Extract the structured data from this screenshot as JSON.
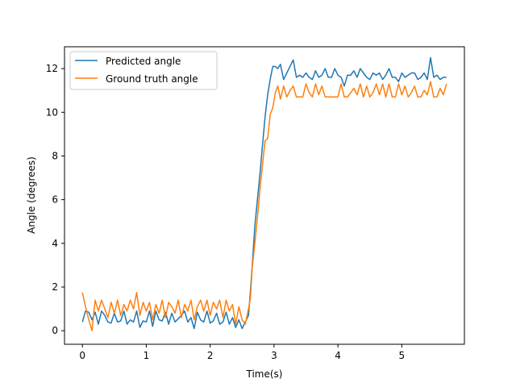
{
  "chart_data": {
    "type": "line",
    "title": "",
    "xlabel": "Time(s)",
    "ylabel": "Angle (degrees)",
    "xlim": [
      -0.28,
      5.98
    ],
    "ylim": [
      -0.62,
      13.0
    ],
    "xticks": [
      0,
      1,
      2,
      3,
      4,
      5
    ],
    "yticks": [
      0,
      2,
      4,
      6,
      8,
      10,
      12
    ],
    "grid": false,
    "legend": "top-left",
    "series": [
      {
        "name": "Predicted angle",
        "color": "#1f77b4",
        "x": [
          0.0,
          0.05,
          0.1,
          0.15,
          0.2,
          0.25,
          0.3,
          0.35,
          0.4,
          0.45,
          0.5,
          0.55,
          0.6,
          0.65,
          0.7,
          0.75,
          0.8,
          0.85,
          0.9,
          0.95,
          1.0,
          1.05,
          1.1,
          1.15,
          1.2,
          1.25,
          1.3,
          1.35,
          1.4,
          1.45,
          1.5,
          1.55,
          1.6,
          1.65,
          1.7,
          1.75,
          1.8,
          1.85,
          1.9,
          1.95,
          2.0,
          2.05,
          2.1,
          2.15,
          2.2,
          2.25,
          2.3,
          2.35,
          2.4,
          2.45,
          2.5,
          2.55,
          2.6,
          2.63,
          2.66,
          2.7,
          2.74,
          2.78,
          2.82,
          2.86,
          2.9,
          2.94,
          2.98,
          3.02,
          3.06,
          3.1,
          3.15,
          3.2,
          3.25,
          3.3,
          3.35,
          3.4,
          3.45,
          3.5,
          3.55,
          3.6,
          3.65,
          3.7,
          3.75,
          3.8,
          3.85,
          3.9,
          3.95,
          4.0,
          4.05,
          4.1,
          4.15,
          4.2,
          4.25,
          4.3,
          4.35,
          4.4,
          4.45,
          4.5,
          4.55,
          4.6,
          4.65,
          4.7,
          4.75,
          4.8,
          4.85,
          4.9,
          4.95,
          5.0,
          5.05,
          5.1,
          5.15,
          5.2,
          5.25,
          5.3,
          5.35,
          5.4,
          5.45,
          5.5,
          5.55,
          5.6,
          5.65,
          5.7
        ],
        "y": [
          0.4,
          0.9,
          0.85,
          0.5,
          0.85,
          0.3,
          0.9,
          0.7,
          0.4,
          0.35,
          0.8,
          0.4,
          0.45,
          0.9,
          0.3,
          0.5,
          0.4,
          0.9,
          0.15,
          0.45,
          0.4,
          0.9,
          0.2,
          0.9,
          0.5,
          0.45,
          0.85,
          0.3,
          0.8,
          0.4,
          0.55,
          0.7,
          0.9,
          0.4,
          0.6,
          0.1,
          0.85,
          0.5,
          0.4,
          0.9,
          0.35,
          0.45,
          0.8,
          0.3,
          0.4,
          0.85,
          0.3,
          0.6,
          0.15,
          0.5,
          0.1,
          0.4,
          0.7,
          1.8,
          3.0,
          4.8,
          6.0,
          7.2,
          8.5,
          9.8,
          10.8,
          11.5,
          12.1,
          12.1,
          12.0,
          12.2,
          11.5,
          11.8,
          12.1,
          12.4,
          11.6,
          11.7,
          11.6,
          11.8,
          11.6,
          11.5,
          11.9,
          11.6,
          11.7,
          12.0,
          11.6,
          11.6,
          12.0,
          11.7,
          11.6,
          11.2,
          11.7,
          11.7,
          11.9,
          11.6,
          12.0,
          11.8,
          11.6,
          11.5,
          11.8,
          11.7,
          11.8,
          11.5,
          11.7,
          12.0,
          11.6,
          11.6,
          11.4,
          11.8,
          11.6,
          11.7,
          11.8,
          11.8,
          11.5,
          11.6,
          11.8,
          11.5,
          12.5,
          11.6,
          11.7,
          11.5,
          11.6,
          11.6
        ],
        "values": null
      },
      {
        "name": "Ground truth angle",
        "color": "#ff7f0e",
        "x": [
          0.0,
          0.05,
          0.1,
          0.15,
          0.2,
          0.25,
          0.3,
          0.35,
          0.4,
          0.45,
          0.5,
          0.55,
          0.6,
          0.65,
          0.7,
          0.75,
          0.8,
          0.85,
          0.9,
          0.95,
          1.0,
          1.05,
          1.1,
          1.15,
          1.2,
          1.25,
          1.3,
          1.35,
          1.4,
          1.45,
          1.5,
          1.55,
          1.6,
          1.65,
          1.7,
          1.75,
          1.8,
          1.85,
          1.9,
          1.95,
          2.0,
          2.05,
          2.1,
          2.15,
          2.2,
          2.25,
          2.3,
          2.35,
          2.4,
          2.45,
          2.5,
          2.55,
          2.6,
          2.63,
          2.66,
          2.7,
          2.74,
          2.78,
          2.82,
          2.86,
          2.9,
          2.94,
          2.98,
          3.02,
          3.06,
          3.1,
          3.15,
          3.2,
          3.25,
          3.3,
          3.35,
          3.4,
          3.45,
          3.5,
          3.55,
          3.6,
          3.65,
          3.7,
          3.75,
          3.8,
          3.85,
          3.9,
          3.95,
          4.0,
          4.05,
          4.1,
          4.15,
          4.2,
          4.25,
          4.3,
          4.35,
          4.4,
          4.45,
          4.5,
          4.55,
          4.6,
          4.65,
          4.7,
          4.75,
          4.8,
          4.85,
          4.9,
          4.95,
          5.0,
          5.05,
          5.1,
          5.15,
          5.2,
          5.25,
          5.3,
          5.35,
          5.4,
          5.45,
          5.5,
          5.55,
          5.6,
          5.65,
          5.7
        ],
        "y": [
          1.75,
          1.1,
          0.5,
          0.0,
          1.4,
          0.9,
          1.4,
          1.0,
          0.6,
          1.3,
          0.8,
          1.4,
          0.7,
          1.2,
          0.9,
          1.4,
          1.0,
          1.75,
          0.7,
          1.3,
          0.9,
          1.3,
          0.5,
          1.2,
          0.8,
          1.4,
          0.6,
          1.3,
          1.1,
          0.8,
          1.4,
          0.6,
          1.2,
          0.9,
          1.4,
          0.5,
          1.1,
          1.4,
          0.9,
          1.4,
          0.7,
          1.3,
          1.0,
          1.4,
          0.6,
          1.4,
          0.9,
          1.2,
          0.3,
          1.1,
          0.5,
          0.3,
          1.0,
          1.5,
          2.9,
          4.0,
          5.2,
          6.5,
          7.6,
          8.7,
          8.8,
          9.9,
          10.2,
          10.9,
          11.2,
          10.6,
          11.2,
          10.7,
          11.0,
          11.2,
          10.7,
          10.7,
          10.7,
          11.3,
          10.9,
          10.7,
          11.3,
          10.8,
          11.2,
          10.7,
          10.7,
          10.7,
          10.7,
          10.7,
          11.3,
          10.7,
          10.7,
          10.9,
          11.1,
          10.8,
          11.3,
          10.7,
          11.2,
          10.7,
          10.9,
          11.3,
          10.8,
          11.3,
          10.7,
          11.3,
          10.7,
          10.7,
          11.3,
          10.8,
          11.2,
          10.7,
          10.9,
          11.2,
          10.7,
          10.7,
          11.0,
          10.8,
          11.4,
          10.7,
          10.7,
          11.1,
          10.8,
          11.3
        ],
        "values": null
      }
    ]
  }
}
